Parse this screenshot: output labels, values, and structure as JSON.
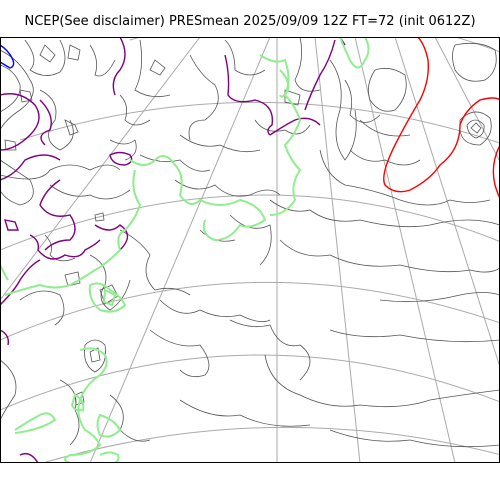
{
  "title": "NCEP(See disclaimer) PRESmean 2025/09/09 12Z FT=72 (init 0612Z)",
  "map": {
    "background": "#ffffff",
    "frame_color": "#000000",
    "graticule_color": "#aaaaaa",
    "contour_color": "#555555",
    "colored_contours": [
      {
        "name": "high-pressure-red",
        "color": "#ff0000"
      },
      {
        "name": "purple",
        "color": "#800080"
      },
      {
        "name": "green",
        "color": "#90ee90"
      },
      {
        "name": "blue",
        "color": "#0000ff"
      }
    ]
  }
}
